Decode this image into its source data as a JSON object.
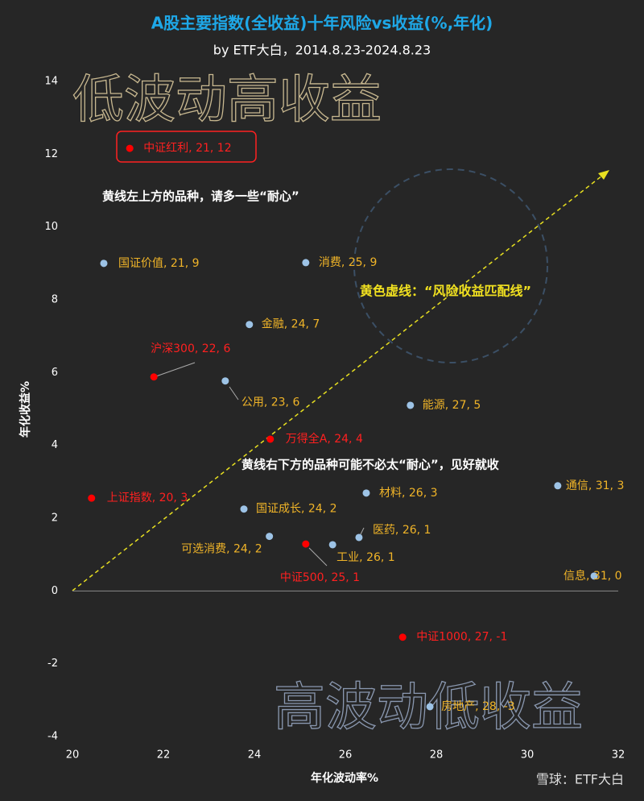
{
  "chart_data": {
    "type": "scatter",
    "title": "A股主要指数(全收益)十年风险vs收益(%,年化)",
    "subtitle": "by ETF大白，2014.8.23-2024.8.23",
    "x_label": "年化波动率%",
    "y_label": "年化收益%",
    "annotations": [
      "低波动高收益",
      "高波动低收益",
      "黄线左上方的品种，请多一些“耐心”",
      "黄色虚线：“风险收益匹配线”",
      "黄线右下方的品种可能不必太“耐心”，见好就收"
    ],
    "watermark": "雪球：ETF大白",
    "point_labels": [
      "中证红利, 21, 12",
      "国证价值, 21, 9",
      "消费, 25, 9",
      "金融, 24, 7",
      "沪深300, 22, 6",
      "公用, 23, 6",
      "能源, 27, 5",
      "万得全A, 24, 4",
      "上证指数, 20, 3",
      "材料, 26, 3",
      "通信, 31, 3",
      "国证成长, 24, 2",
      "医药, 26, 1",
      "可选消费, 24, 2",
      "工业, 26, 1",
      "中证500, 25, 1",
      "信息, 31, 0",
      "中证1000, 27, -1",
      "房地产, 28, -3"
    ],
    "x": [
      21.26,
      20.69,
      25.13,
      23.89,
      21.79,
      23.36,
      27.43,
      24.35,
      20.42,
      26.46,
      30.67,
      23.77,
      26.3,
      24.33,
      25.72,
      25.13,
      31.47,
      27.26,
      27.86
    ],
    "values": [
      12.16,
      9.0,
      9.02,
      7.32,
      5.88,
      5.77,
      5.1,
      4.17,
      2.55,
      2.69,
      2.89,
      2.25,
      1.47,
      1.5,
      1.27,
      1.29,
      0.41,
      -1.27,
      -3.18
    ],
    "colors": [
      "#ff0000",
      "#9dc3e6",
      "#9dc3e6",
      "#9dc3e6",
      "#ff0000",
      "#9dc3e6",
      "#9dc3e6",
      "#ff0000",
      "#ff0000",
      "#9dc3e6",
      "#9dc3e6",
      "#9dc3e6",
      "#9dc3e6",
      "#9dc3e6",
      "#9dc3e6",
      "#ff0000",
      "#9dc3e6",
      "#ff0000",
      "#9dc3e6"
    ],
    "xlim": [
      20,
      32
    ],
    "xticks": [
      20,
      22,
      24,
      26,
      28,
      30,
      32
    ],
    "ylim": [
      -4,
      14
    ],
    "yticks": [
      -4,
      -2,
      0,
      2,
      4,
      6,
      8,
      10,
      12,
      14
    ]
  }
}
